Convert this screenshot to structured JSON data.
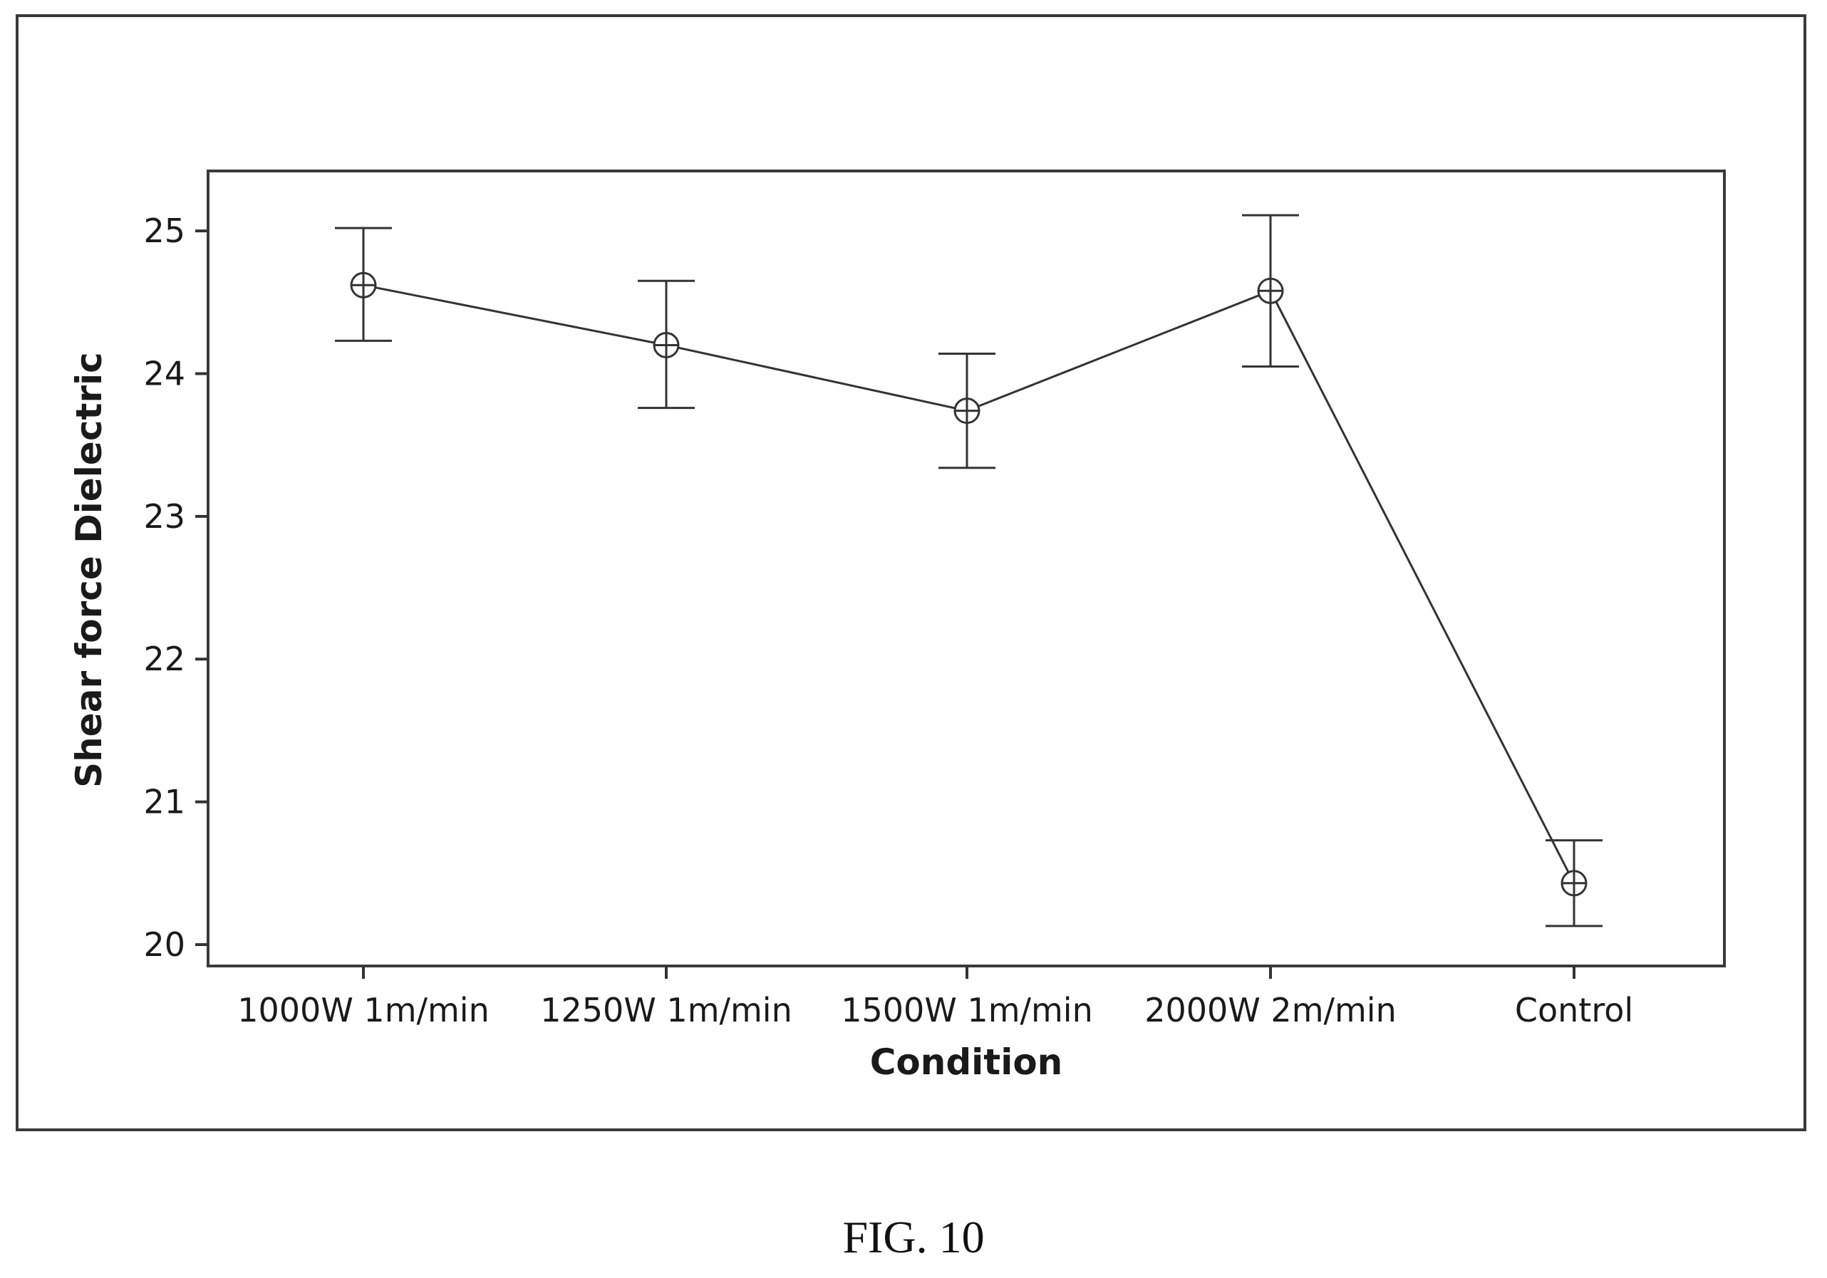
{
  "figure_caption": "FIG. 10",
  "colors": {
    "line": "#333333",
    "frame": "#3a3a3a",
    "text": "#1a1a1a"
  },
  "chart_data": {
    "type": "line",
    "title": "",
    "xlabel": "Condition",
    "ylabel": "Shear force Dielectric",
    "categories": [
      "1000W 1m/min",
      "1250W 1m/min",
      "1500W 1m/min",
      "2000W 2m/min",
      "Control"
    ],
    "series": [
      {
        "values": [
          24.62,
          24.2,
          23.74,
          24.58,
          20.43
        ],
        "error_low": [
          24.23,
          23.76,
          23.34,
          24.05,
          20.13
        ],
        "error_high": [
          25.02,
          24.65,
          24.14,
          25.11,
          20.73
        ],
        "marker": "circle-plus"
      }
    ],
    "yticks": [
      20,
      21,
      22,
      23,
      24,
      25
    ],
    "ylim": [
      19.85,
      25.42
    ],
    "grid": false,
    "legend": "none"
  }
}
